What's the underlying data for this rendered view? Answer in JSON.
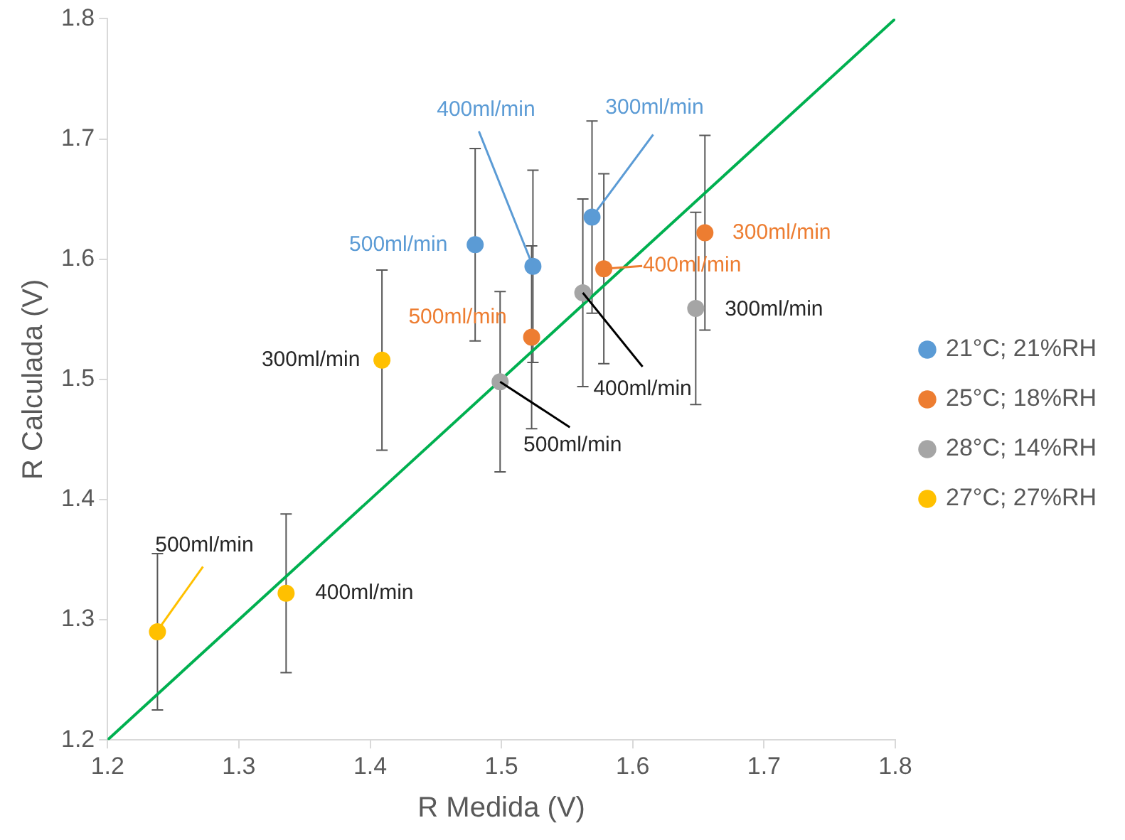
{
  "chart_data": {
    "type": "scatter",
    "xlabel": "R Medida (V)",
    "ylabel": "R Calculada (V)",
    "xlim": [
      1.2,
      1.8
    ],
    "xticks": [
      1.2,
      1.3,
      1.4,
      1.5,
      1.6,
      1.7,
      1.8
    ],
    "ylim": [
      1.2,
      1.8
    ],
    "yticks": [
      1.2,
      1.3,
      1.4,
      1.5,
      1.6,
      1.7,
      1.8
    ],
    "grid": false,
    "legend": "right",
    "marker": "circle",
    "series": [
      {
        "name": "21°C; 21%RH",
        "color": "#5b9bd5",
        "x": [
          1.48,
          1.524,
          1.569
        ],
        "values": [
          1.612,
          1.594,
          1.635
        ],
        "errors": [
          0.08,
          0.08,
          0.08
        ]
      },
      {
        "name": "25°C; 18%RH",
        "color": "#ed7d31",
        "x": [
          1.523,
          1.578,
          1.655
        ],
        "values": [
          1.535,
          1.592,
          1.622
        ],
        "errors": [
          0.076,
          0.079,
          0.081
        ]
      },
      {
        "name": "28°C; 14%RH",
        "color": "#a5a5a5",
        "x": [
          1.499,
          1.562,
          1.648
        ],
        "values": [
          1.498,
          1.572,
          1.559
        ],
        "errors": [
          0.075,
          0.078,
          0.08
        ]
      },
      {
        "name": "27°C; 27%RH",
        "color": "#ffc000",
        "x": [
          1.238,
          1.336,
          1.409
        ],
        "values": [
          1.29,
          1.322,
          1.516
        ],
        "errors": [
          0.065,
          0.066,
          0.075
        ]
      },
      {
        "type": "line",
        "marker": "none",
        "color": "#00b050",
        "x": [
          1.2,
          1.8
        ],
        "values": [
          1.2,
          1.8
        ]
      }
    ],
    "annotations": [
      {
        "text": "400ml/min",
        "x": 1.524,
        "y": 1.594
      },
      {
        "text": "300ml/min",
        "x": 1.569,
        "y": 1.635
      },
      {
        "text": "500ml/min",
        "x": 1.48,
        "y": 1.612
      },
      {
        "text": "500ml/min",
        "x": 1.523,
        "y": 1.535
      },
      {
        "text": "400ml/min",
        "x": 1.578,
        "y": 1.592
      },
      {
        "text": "300ml/min",
        "x": 1.655,
        "y": 1.622
      },
      {
        "text": "400ml/min",
        "x": 1.562,
        "y": 1.572
      },
      {
        "text": "500ml/min",
        "x": 1.499,
        "y": 1.498
      },
      {
        "text": "300ml/min",
        "x": 1.648,
        "y": 1.559
      },
      {
        "text": "300ml/min",
        "x": 1.409,
        "y": 1.516
      },
      {
        "text": "500ml/min",
        "x": 1.238,
        "y": 1.291
      },
      {
        "text": "400ml/min",
        "x": 1.336,
        "y": 1.323
      }
    ]
  }
}
